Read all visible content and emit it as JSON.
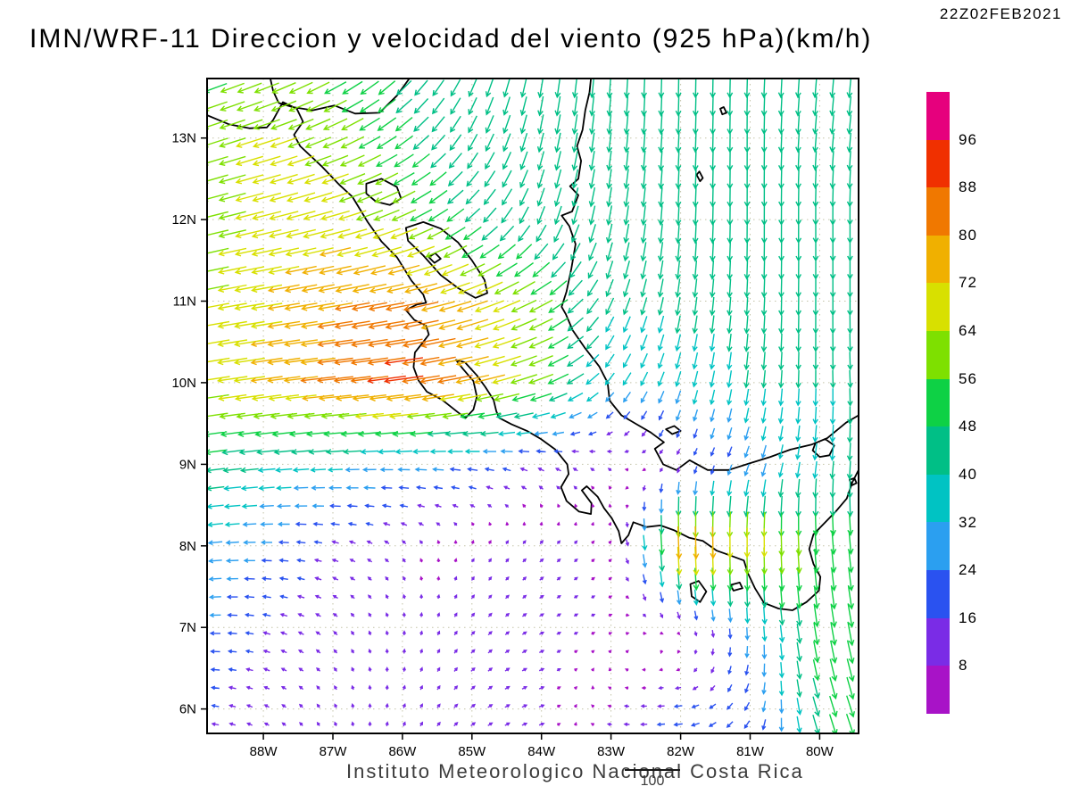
{
  "header": {
    "timestamp": "22Z02FEB2021",
    "title": "IMN/WRF-11 Direccion y velocidad del viento (925 hPa)(km/h)"
  },
  "footer": {
    "caption": "Instituto Meteorologico Nacional Costa Rica",
    "reference_vector_label": "100"
  },
  "chart_data": {
    "type": "vector_field",
    "title": "IMN/WRF-11 Direccion y velocidad del viento (925 hPa)(km/h)",
    "units": "km/h",
    "level": "925 hPa",
    "reference_speed": 100,
    "extent": {
      "lon_min": -88.81,
      "lon_max": -79.44,
      "lat_min": 5.7,
      "lat_max": 13.73
    },
    "lon_ticks": [
      {
        "value": -88,
        "label": "88W"
      },
      {
        "value": -87,
        "label": "87W"
      },
      {
        "value": -86,
        "label": "86W"
      },
      {
        "value": -85,
        "label": "85W"
      },
      {
        "value": -84,
        "label": "84W"
      },
      {
        "value": -83,
        "label": "83W"
      },
      {
        "value": -82,
        "label": "82W"
      },
      {
        "value": -81,
        "label": "81W"
      },
      {
        "value": -80,
        "label": "80W"
      }
    ],
    "lat_ticks": [
      {
        "value": 13,
        "label": "13N"
      },
      {
        "value": 12,
        "label": "12N"
      },
      {
        "value": 11,
        "label": "11N"
      },
      {
        "value": 10,
        "label": "10N"
      },
      {
        "value": 9,
        "label": "9N"
      },
      {
        "value": 8,
        "label": "8N"
      },
      {
        "value": 7,
        "label": "7N"
      },
      {
        "value": 6,
        "label": "6N"
      }
    ],
    "colorbar": {
      "levels": [
        8,
        16,
        24,
        32,
        40,
        48,
        56,
        64,
        72,
        80,
        88,
        96
      ],
      "colors": [
        "#a813c7",
        "#7a2ce6",
        "#2a52f0",
        "#2b9ff0",
        "#00c3c3",
        "#00bf86",
        "#0ed145",
        "#7ee000",
        "#d8e000",
        "#f0b000",
        "#f07800",
        "#f03000",
        "#e6007d"
      ]
    },
    "wind_grid": {
      "lons": [
        -89,
        -88,
        -87,
        -86,
        -85,
        -84,
        -83,
        -82,
        -81,
        -80,
        -79
      ],
      "lats": [
        14,
        13,
        12,
        11,
        10,
        9,
        8,
        7,
        6,
        5
      ],
      "u": [
        [
          -48,
          -52,
          -46,
          -30,
          -15,
          -6,
          -2,
          0,
          -2,
          -4,
          -4
        ],
        [
          -56,
          -62,
          -56,
          -40,
          -20,
          -10,
          -5,
          -2,
          0,
          -4,
          -4
        ],
        [
          -56,
          -66,
          -66,
          -56,
          -34,
          -16,
          -8,
          -2,
          0,
          0,
          0
        ],
        [
          -60,
          -70,
          -78,
          -82,
          -70,
          -52,
          -16,
          -6,
          -2,
          0,
          0
        ],
        [
          -64,
          -72,
          -82,
          -90,
          -76,
          -55,
          -20,
          -10,
          -5,
          0,
          4
        ],
        [
          -46,
          -40,
          -34,
          -28,
          -24,
          -14,
          -7,
          -5,
          -10,
          -5,
          0
        ],
        [
          -34,
          -24,
          -14,
          -7,
          4,
          7,
          5,
          3,
          0,
          4,
          6
        ],
        [
          -26,
          -16,
          -8,
          0,
          7,
          9,
          7,
          5,
          2,
          8,
          12
        ],
        [
          -18,
          -10,
          -4,
          3,
          9,
          11,
          -8,
          -18,
          -10,
          14,
          18
        ],
        [
          -14,
          -8,
          -3,
          4,
          10,
          9,
          -14,
          -24,
          -14,
          14,
          18
        ]
      ],
      "v": [
        [
          -18,
          -22,
          -28,
          -34,
          -40,
          -44,
          -45,
          -45,
          -45,
          -45,
          -45
        ],
        [
          -18,
          -20,
          -24,
          -30,
          -38,
          -44,
          -45,
          -45,
          -45,
          -44,
          -44
        ],
        [
          -14,
          -16,
          -18,
          -24,
          -30,
          -40,
          -44,
          -45,
          -45,
          -44,
          -44
        ],
        [
          -12,
          -12,
          -14,
          -16,
          -24,
          -28,
          -38,
          -42,
          -42,
          -42,
          -42
        ],
        [
          -10,
          -10,
          -9,
          -12,
          -16,
          -20,
          -26,
          -34,
          -40,
          -40,
          -40
        ],
        [
          -6,
          -4,
          -2,
          0,
          3,
          6,
          5,
          -8,
          -24,
          -38,
          -44
        ],
        [
          -4,
          0,
          4,
          7,
          7,
          7,
          5,
          -80,
          -70,
          -55,
          -50
        ],
        [
          -2,
          4,
          7,
          9,
          8,
          5,
          3,
          -4,
          -30,
          -52,
          -58
        ],
        [
          2,
          5,
          8,
          9,
          7,
          4,
          2,
          -2,
          -18,
          -46,
          -52
        ],
        [
          2,
          5,
          7,
          9,
          6,
          3,
          0,
          -4,
          -14,
          -45,
          -50
        ]
      ]
    },
    "coastlines": [
      {
        "name": "pacific-coast",
        "closed": false,
        "points": [
          [
            -88.81,
            13.28
          ],
          [
            -88.5,
            13.17
          ],
          [
            -88.2,
            13.12
          ],
          [
            -87.95,
            13.13
          ],
          [
            -87.86,
            13.22
          ],
          [
            -87.72,
            13.44
          ],
          [
            -87.52,
            13.36
          ],
          [
            -87.43,
            13.2
          ],
          [
            -87.56,
            13.04
          ],
          [
            -87.47,
            12.9
          ],
          [
            -87.17,
            12.66
          ],
          [
            -86.9,
            12.42
          ],
          [
            -86.72,
            12.28
          ],
          [
            -86.5,
            11.97
          ],
          [
            -86.3,
            11.73
          ],
          [
            -86.08,
            11.54
          ],
          [
            -85.87,
            11.25
          ],
          [
            -85.7,
            11.08
          ],
          [
            -85.66,
            10.98
          ],
          [
            -85.79,
            10.96
          ],
          [
            -85.95,
            10.89
          ],
          [
            -85.83,
            10.77
          ],
          [
            -85.66,
            10.7
          ],
          [
            -85.62,
            10.59
          ],
          [
            -85.71,
            10.49
          ],
          [
            -85.82,
            10.37
          ],
          [
            -85.84,
            10.19
          ],
          [
            -85.77,
            10.03
          ],
          [
            -85.65,
            9.89
          ],
          [
            -85.43,
            9.79
          ],
          [
            -85.19,
            9.63
          ],
          [
            -85.09,
            9.57
          ],
          [
            -84.98,
            9.67
          ],
          [
            -84.93,
            9.83
          ],
          [
            -84.98,
            10.02
          ],
          [
            -85.13,
            10.17
          ],
          [
            -85.23,
            10.28
          ],
          [
            -85.1,
            10.25
          ],
          [
            -84.93,
            10.09
          ],
          [
            -84.81,
            9.95
          ],
          [
            -84.69,
            9.79
          ],
          [
            -84.65,
            9.65
          ],
          [
            -84.61,
            9.57
          ],
          [
            -84.43,
            9.49
          ],
          [
            -84.21,
            9.41
          ],
          [
            -84.01,
            9.31
          ],
          [
            -83.8,
            9.18
          ],
          [
            -83.63,
            9.0
          ],
          [
            -83.61,
            8.88
          ],
          [
            -83.72,
            8.72
          ],
          [
            -83.64,
            8.55
          ],
          [
            -83.46,
            8.42
          ],
          [
            -83.29,
            8.39
          ],
          [
            -83.28,
            8.52
          ],
          [
            -83.42,
            8.68
          ],
          [
            -83.35,
            8.73
          ],
          [
            -83.19,
            8.6
          ],
          [
            -83.1,
            8.46
          ],
          [
            -82.99,
            8.34
          ],
          [
            -82.89,
            8.18
          ],
          [
            -82.85,
            8.03
          ],
          [
            -82.75,
            8.13
          ],
          [
            -82.68,
            8.29
          ],
          [
            -82.49,
            8.23
          ],
          [
            -82.29,
            8.25
          ],
          [
            -82.09,
            8.19
          ],
          [
            -81.88,
            8.1
          ],
          [
            -81.68,
            8.06
          ],
          [
            -81.48,
            7.94
          ],
          [
            -81.28,
            7.88
          ],
          [
            -81.09,
            7.82
          ],
          [
            -81.03,
            7.66
          ],
          [
            -80.93,
            7.48
          ],
          [
            -80.8,
            7.3
          ],
          [
            -80.59,
            7.23
          ],
          [
            -80.39,
            7.21
          ],
          [
            -80.19,
            7.31
          ],
          [
            -80.01,
            7.45
          ],
          [
            -79.99,
            7.62
          ],
          [
            -80.09,
            7.78
          ],
          [
            -80.15,
            7.96
          ],
          [
            -80.09,
            8.14
          ],
          [
            -79.93,
            8.28
          ],
          [
            -79.77,
            8.42
          ],
          [
            -79.61,
            8.58
          ],
          [
            -79.53,
            8.78
          ],
          [
            -79.44,
            8.93
          ]
        ]
      },
      {
        "name": "caribbean-coast",
        "closed": false,
        "points": [
          [
            -79.44,
            9.6
          ],
          [
            -79.62,
            9.51
          ],
          [
            -79.89,
            9.32
          ],
          [
            -80.12,
            9.24
          ],
          [
            -80.42,
            9.18
          ],
          [
            -80.71,
            9.09
          ],
          [
            -81.01,
            9.01
          ],
          [
            -81.31,
            8.93
          ],
          [
            -81.61,
            8.93
          ],
          [
            -81.87,
            9.05
          ],
          [
            -82.06,
            8.93
          ],
          [
            -82.25,
            9.0
          ],
          [
            -82.37,
            9.19
          ],
          [
            -82.24,
            9.27
          ],
          [
            -82.43,
            9.39
          ],
          [
            -82.63,
            9.49
          ],
          [
            -82.85,
            9.6
          ],
          [
            -83.02,
            9.78
          ],
          [
            -83.05,
            10.0
          ],
          [
            -83.17,
            10.2
          ],
          [
            -83.37,
            10.42
          ],
          [
            -83.55,
            10.64
          ],
          [
            -83.65,
            10.84
          ],
          [
            -83.71,
            10.93
          ],
          [
            -83.64,
            11.12
          ],
          [
            -83.57,
            11.4
          ],
          [
            -83.51,
            11.7
          ],
          [
            -83.6,
            11.92
          ],
          [
            -83.71,
            12.05
          ],
          [
            -83.56,
            12.1
          ],
          [
            -83.47,
            12.3
          ],
          [
            -83.59,
            12.41
          ],
          [
            -83.47,
            12.5
          ],
          [
            -83.43,
            12.72
          ],
          [
            -83.49,
            12.9
          ],
          [
            -83.41,
            13.1
          ],
          [
            -83.37,
            13.34
          ],
          [
            -83.31,
            13.56
          ],
          [
            -83.29,
            13.73
          ]
        ]
      },
      {
        "name": "honduras-nicaragua-border",
        "closed": false,
        "points": [
          [
            -85.9,
            13.73
          ],
          [
            -86.08,
            13.52
          ],
          [
            -86.33,
            13.31
          ],
          [
            -86.68,
            13.3
          ],
          [
            -86.98,
            13.4
          ],
          [
            -87.29,
            13.34
          ],
          [
            -87.58,
            13.38
          ],
          [
            -87.78,
            13.43
          ]
        ]
      },
      {
        "name": "el-salvador-honduras-border",
        "closed": false,
        "points": [
          [
            -87.78,
            13.43
          ],
          [
            -87.86,
            13.58
          ],
          [
            -87.9,
            13.73
          ]
        ]
      },
      {
        "name": "lake-nicaragua",
        "closed": true,
        "points": [
          [
            -85.95,
            11.9
          ],
          [
            -85.7,
            11.97
          ],
          [
            -85.45,
            11.89
          ],
          [
            -85.2,
            11.72
          ],
          [
            -85.0,
            11.5
          ],
          [
            -84.82,
            11.26
          ],
          [
            -84.78,
            11.1
          ],
          [
            -84.95,
            11.04
          ],
          [
            -85.2,
            11.16
          ],
          [
            -85.45,
            11.32
          ],
          [
            -85.7,
            11.56
          ],
          [
            -85.92,
            11.74
          ]
        ]
      },
      {
        "name": "ometepe-island",
        "closed": true,
        "points": [
          [
            -85.62,
            11.54
          ],
          [
            -85.53,
            11.59
          ],
          [
            -85.45,
            11.52
          ],
          [
            -85.54,
            11.47
          ]
        ]
      },
      {
        "name": "lake-managua",
        "closed": true,
        "points": [
          [
            -86.52,
            12.44
          ],
          [
            -86.3,
            12.5
          ],
          [
            -86.08,
            12.4
          ],
          [
            -86.02,
            12.26
          ],
          [
            -86.18,
            12.18
          ],
          [
            -86.38,
            12.22
          ],
          [
            -86.52,
            12.32
          ]
        ]
      },
      {
        "name": "coiba-island",
        "closed": true,
        "points": [
          [
            -81.86,
            7.53
          ],
          [
            -81.74,
            7.57
          ],
          [
            -81.63,
            7.44
          ],
          [
            -81.72,
            7.31
          ],
          [
            -81.84,
            7.38
          ]
        ]
      },
      {
        "name": "cebaco-island",
        "closed": true,
        "points": [
          [
            -81.28,
            7.52
          ],
          [
            -81.15,
            7.55
          ],
          [
            -81.11,
            7.48
          ],
          [
            -81.24,
            7.45
          ]
        ]
      },
      {
        "name": "san-andres-island",
        "closed": true,
        "points": [
          [
            -81.73,
            12.59
          ],
          [
            -81.68,
            12.51
          ],
          [
            -81.72,
            12.47
          ],
          [
            -81.77,
            12.55
          ]
        ]
      },
      {
        "name": "providencia-island",
        "closed": true,
        "points": [
          [
            -81.38,
            13.38
          ],
          [
            -81.34,
            13.31
          ],
          [
            -81.4,
            13.29
          ],
          [
            -81.43,
            13.36
          ]
        ]
      },
      {
        "name": "gatun-lake",
        "closed": true,
        "points": [
          [
            -80.06,
            9.26
          ],
          [
            -79.92,
            9.31
          ],
          [
            -79.79,
            9.23
          ],
          [
            -79.86,
            9.11
          ],
          [
            -80.0,
            9.09
          ],
          [
            -80.1,
            9.17
          ]
        ]
      },
      {
        "name": "taboga-island",
        "closed": true,
        "points": [
          [
            -79.57,
            8.81
          ],
          [
            -79.5,
            8.83
          ],
          [
            -79.47,
            8.77
          ],
          [
            -79.54,
            8.74
          ]
        ]
      },
      {
        "name": "bocas-islands",
        "closed": true,
        "points": [
          [
            -82.21,
            9.43
          ],
          [
            -82.09,
            9.47
          ],
          [
            -82.0,
            9.41
          ],
          [
            -82.12,
            9.37
          ]
        ]
      }
    ]
  }
}
